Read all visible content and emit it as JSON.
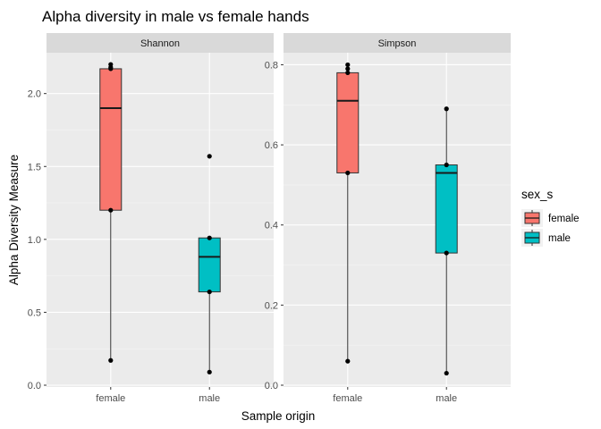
{
  "chart_data": {
    "type": "boxplot",
    "title": "Alpha diversity in male vs female hands",
    "xlabel": "Sample origin",
    "ylabel": "Alpha Diversity Measure",
    "categories": [
      "female",
      "male"
    ],
    "legend": {
      "title": "sex_s",
      "position": "right",
      "items": [
        {
          "label": "female",
          "color": "#F8766D"
        },
        {
          "label": "male",
          "color": "#00BFC4"
        }
      ]
    },
    "grid": true,
    "panels": [
      {
        "name": "Shannon",
        "ylim": [
          0,
          2.28
        ],
        "yticks": [
          0.0,
          0.5,
          1.0,
          1.5,
          2.0
        ],
        "ytick_labels": [
          "0.0",
          "0.5",
          "1.0",
          "1.5",
          "2.0"
        ],
        "boxes": [
          {
            "category": "female",
            "min": 0.17,
            "q1": 1.2,
            "median": 1.9,
            "q3": 2.17,
            "max": 2.2,
            "points": [
              2.2,
              2.18,
              2.17,
              1.2,
              0.17
            ]
          },
          {
            "category": "male",
            "min": 0.09,
            "q1": 0.64,
            "median": 0.88,
            "q3": 1.01,
            "max": 1.01,
            "points": [
              1.57,
              1.01,
              0.64,
              0.09
            ]
          }
        ]
      },
      {
        "name": "Simpson",
        "ylim": [
          0,
          0.83
        ],
        "yticks": [
          0.0,
          0.2,
          0.4,
          0.6,
          0.8
        ],
        "ytick_labels": [
          "0.0",
          "0.2",
          "0.4",
          "0.6",
          "0.8"
        ],
        "boxes": [
          {
            "category": "female",
            "min": 0.06,
            "q1": 0.53,
            "median": 0.71,
            "q3": 0.78,
            "max": 0.8,
            "points": [
              0.8,
              0.79,
              0.78,
              0.53,
              0.06
            ]
          },
          {
            "category": "male",
            "min": 0.03,
            "q1": 0.33,
            "median": 0.53,
            "q3": 0.55,
            "max": 0.69,
            "points": [
              0.69,
              0.55,
              0.33,
              0.03
            ]
          }
        ]
      }
    ]
  }
}
